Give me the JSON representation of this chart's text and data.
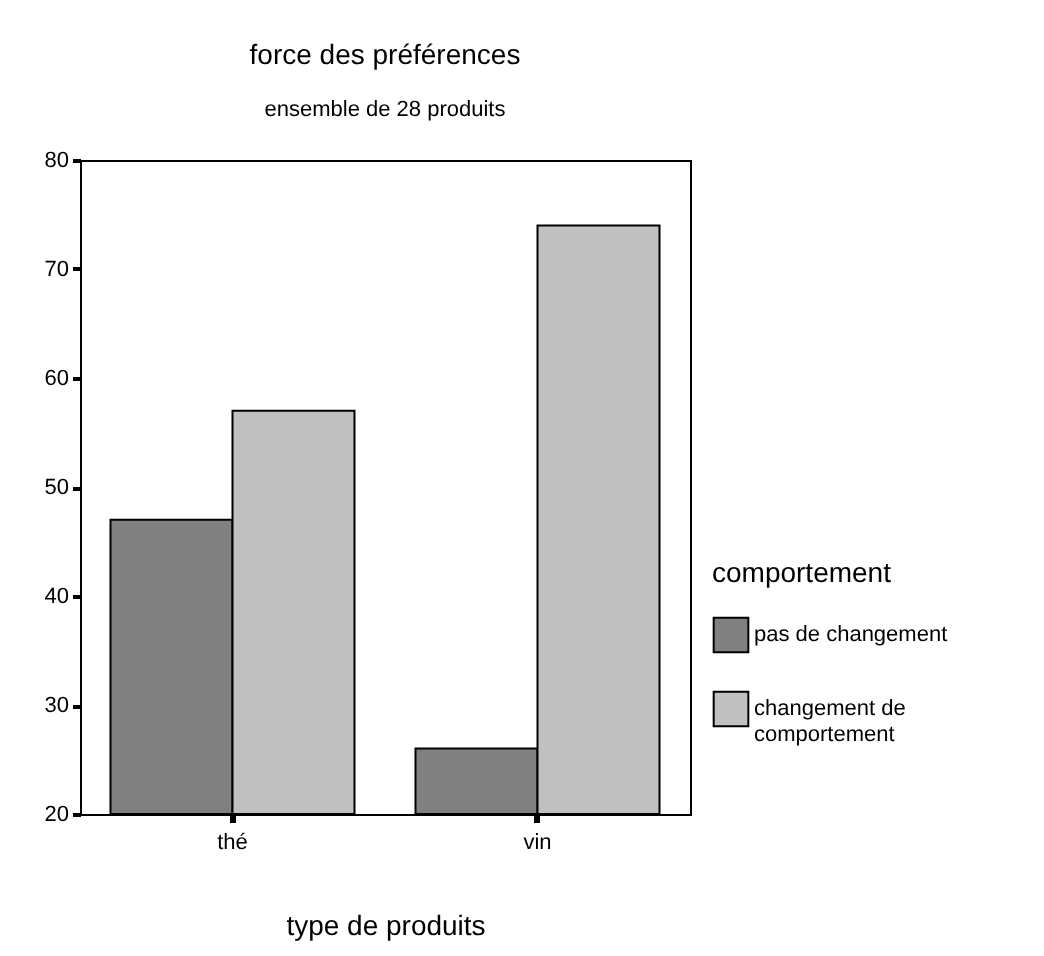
{
  "chart_data": {
    "type": "bar",
    "title": "force des préférences",
    "subtitle": "ensemble de 28 produits",
    "xlabel": "type de produits",
    "legend_title": "comportement",
    "categories": [
      "thé",
      "vin"
    ],
    "series": [
      {
        "name": "pas de changement",
        "color": "#808080",
        "values": [
          47,
          26
        ]
      },
      {
        "name": "changement de comportement",
        "color": "#c0c0c0",
        "values": [
          57,
          74
        ]
      }
    ],
    "ylim": [
      20,
      80
    ],
    "yticks": [
      20,
      30,
      40,
      50,
      60,
      70,
      80
    ],
    "legend": "right"
  }
}
